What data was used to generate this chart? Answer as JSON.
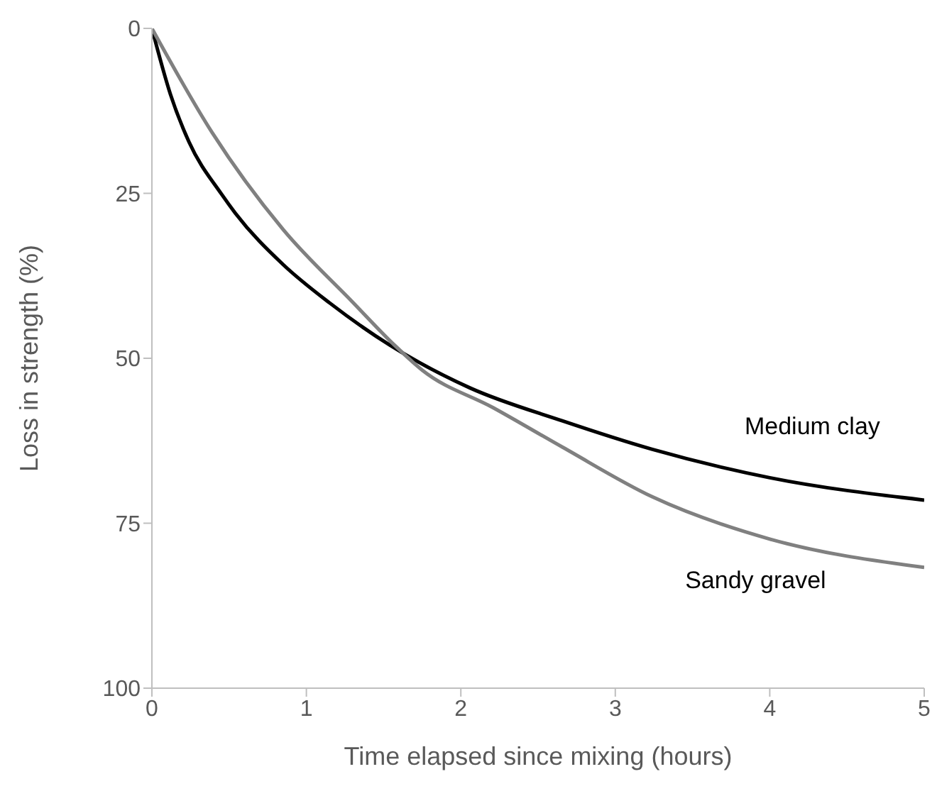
{
  "chart_data": {
    "type": "line",
    "xlabel": "Time elapsed since mixing (hours)",
    "ylabel": "Loss in strength (%)",
    "xlim": [
      0,
      5
    ],
    "xticks": [
      0,
      1,
      2,
      3,
      4,
      5
    ],
    "ylim": [
      100,
      0
    ],
    "yticks": [
      0,
      25,
      50,
      75,
      100
    ],
    "marker": "none",
    "line_style": "solid",
    "series": [
      {
        "name": "Medium clay",
        "color": "#000000",
        "x": [
          0,
          0.12,
          0.24,
          0.45,
          0.54,
          0.85,
          1.15,
          1.54,
          2.06,
          2.66,
          3.24,
          4.0,
          5.0
        ],
        "values": [
          0,
          10,
          17.2,
          25.1,
          28,
          35.8,
          41.6,
          48,
          54.5,
          59.5,
          63.8,
          68.1,
          71.5
        ]
      },
      {
        "name": "Sandy gravel",
        "color": "#808080",
        "x": [
          0,
          0.39,
          0.85,
          1.3,
          1.57,
          1.75,
          2.21,
          2.66,
          3.24,
          4.0,
          5.0
        ],
        "values": [
          0,
          15.8,
          30.5,
          41.5,
          48,
          51.8,
          57.5,
          63.5,
          71,
          77.4,
          81.7
        ]
      }
    ]
  }
}
